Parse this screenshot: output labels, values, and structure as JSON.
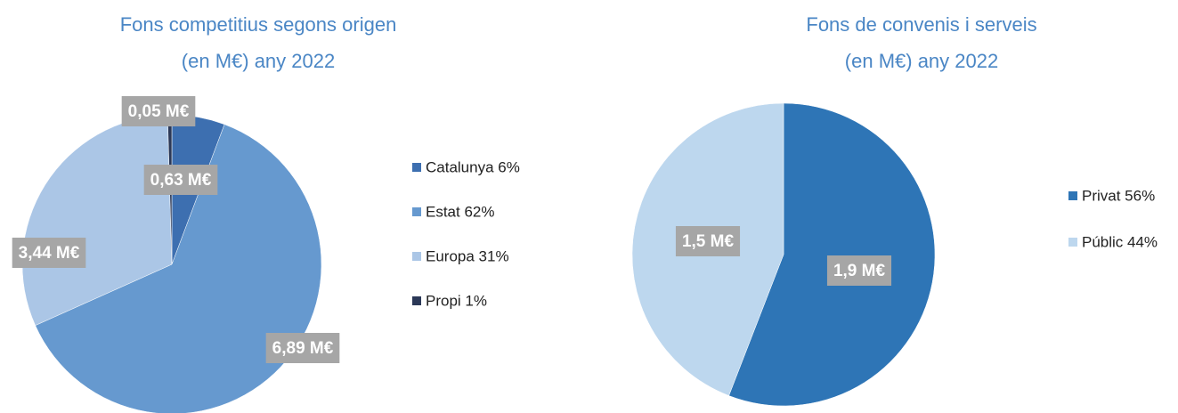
{
  "chart_data": [
    {
      "type": "pie",
      "title": "Fons competitius segons origen",
      "subtitle": "(en M€) any 2022",
      "categories": [
        "Catalunya 6%",
        "Estat 62%",
        "Europa 31%",
        "Propi 1%"
      ],
      "values": [
        0.63,
        6.89,
        3.44,
        0.05
      ],
      "value_labels": [
        "0,63 M€",
        "6,89 M€",
        "3,44 M€",
        "0,05 M€"
      ],
      "colors": [
        "#3d6fb0",
        "#6699cf",
        "#abc6e6",
        "#2b3857"
      ]
    },
    {
      "type": "pie",
      "title": "Fons de convenis i serveis",
      "subtitle": "(en M€) any 2022",
      "categories": [
        "Privat 56%",
        "Públic 44%"
      ],
      "values": [
        1.9,
        1.5
      ],
      "value_labels": [
        "1,9 M€",
        "1,5 M€"
      ],
      "colors": [
        "#2e75b6",
        "#bdd7ee"
      ]
    }
  ]
}
